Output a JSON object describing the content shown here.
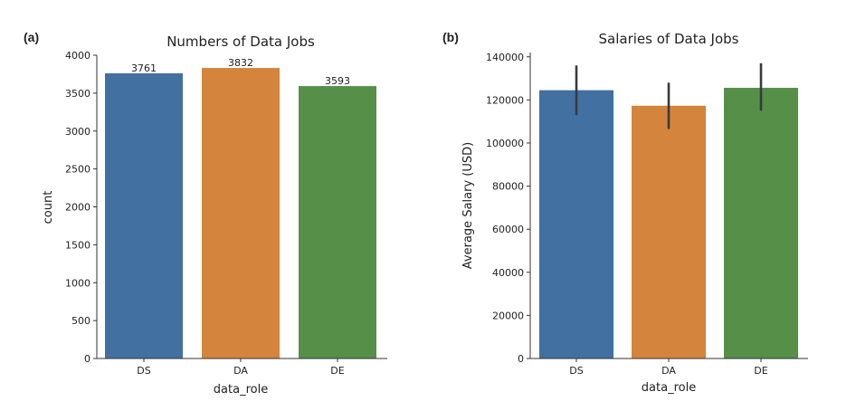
{
  "chart_data": [
    {
      "panel_label": "(a)",
      "type": "bar",
      "title": "Numbers of Data Jobs",
      "xlabel": "data_role",
      "ylabel": "count",
      "categories": [
        "DS",
        "DA",
        "DE"
      ],
      "values": [
        3761,
        3832,
        3593
      ],
      "data_labels": [
        "3761",
        "3832",
        "3593"
      ],
      "colors": [
        "#4270a0",
        "#d5843d",
        "#558f48"
      ],
      "ylim": [
        0,
        4000
      ],
      "yticks": [
        0,
        500,
        1000,
        1500,
        2000,
        2500,
        3000,
        3500,
        4000
      ],
      "ytick_labels": [
        "0",
        "500",
        "1000",
        "1500",
        "2000",
        "2500",
        "3000",
        "3500",
        "4000"
      ],
      "grid": false
    },
    {
      "panel_label": "(b)",
      "type": "bar",
      "title": "Salaries of Data Jobs",
      "xlabel": "data_role",
      "ylabel": "Average Salary (USD)",
      "categories": [
        "DS",
        "DA",
        "DE"
      ],
      "values": [
        124500,
        117300,
        125600
      ],
      "error_low": [
        113000,
        106500,
        115000
      ],
      "error_high": [
        136000,
        128000,
        137000
      ],
      "colors": [
        "#4270a0",
        "#d5843d",
        "#558f48"
      ],
      "ylim": [
        0,
        142000
      ],
      "yticks": [
        0,
        20000,
        40000,
        60000,
        80000,
        100000,
        120000,
        140000
      ],
      "ytick_labels": [
        "0",
        "20000",
        "40000",
        "60000",
        "80000",
        "100000",
        "120000",
        "140000"
      ],
      "grid": false
    }
  ]
}
